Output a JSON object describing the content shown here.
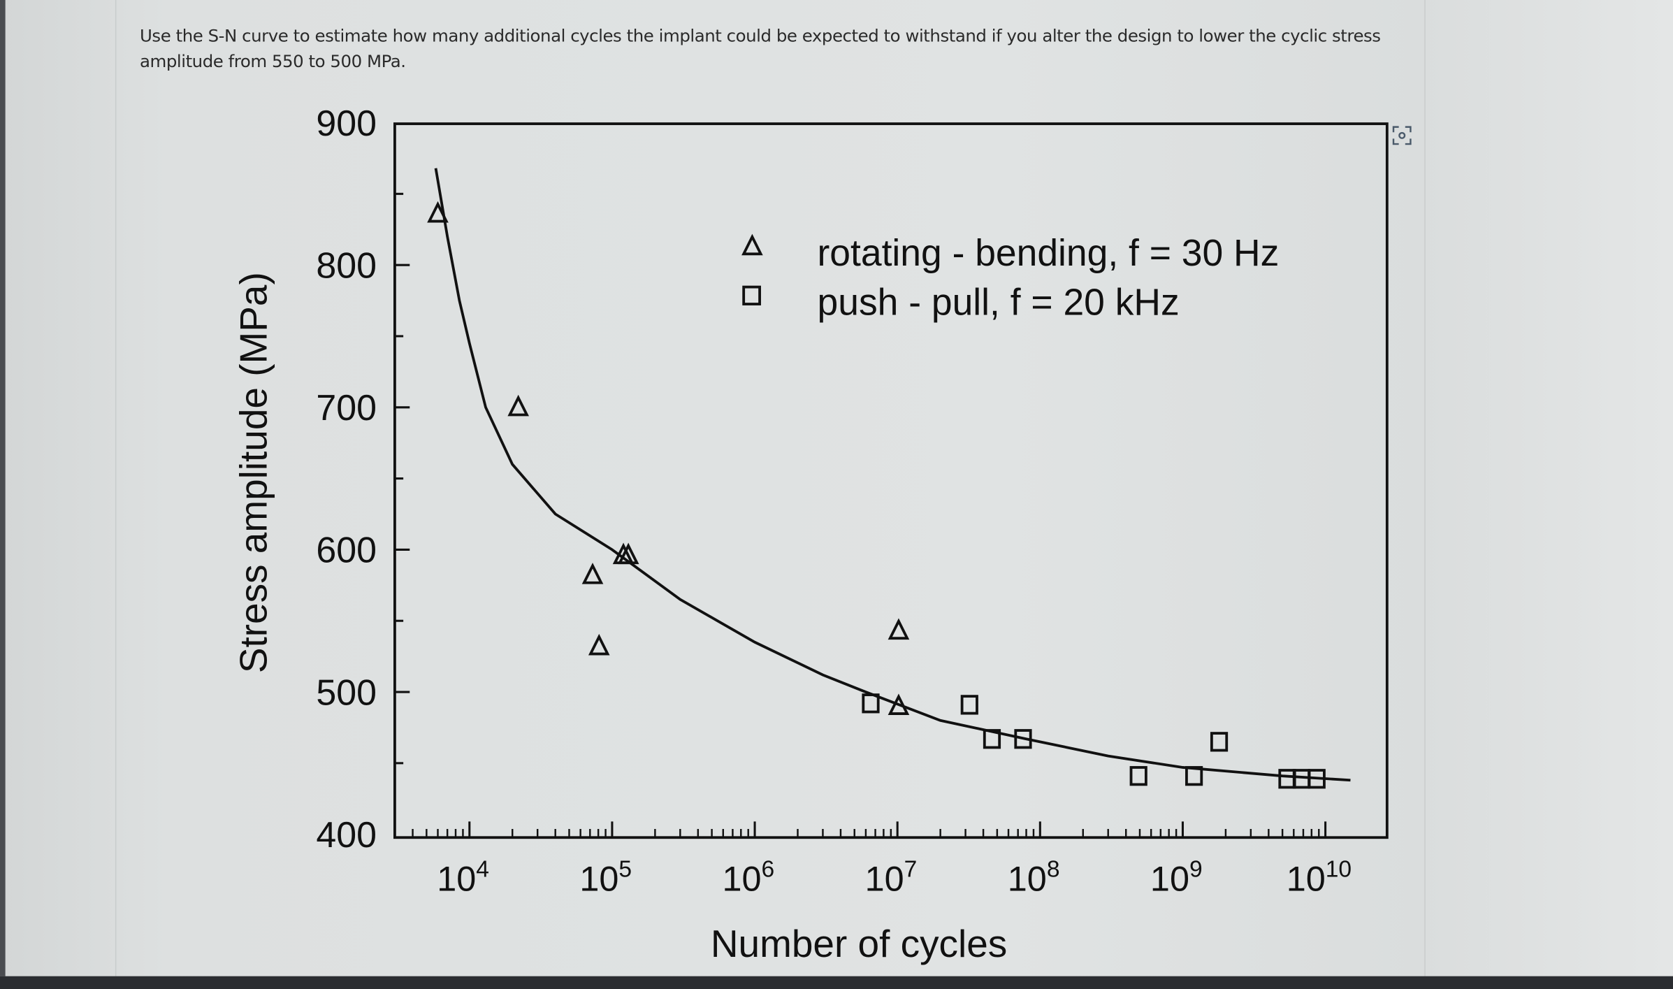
{
  "question": {
    "text": "Use the S-N curve to estimate how many additional cycles the implant could be expected to withstand if you alter the design to lower the cyclic stress amplitude from 550 to 500 MPa."
  },
  "expand_icon": "expand-image-icon",
  "chart_data": {
    "type": "scatter",
    "xlabel": "Number of cycles",
    "ylabel": "Stress amplitude (MPa)",
    "x_scale": "log",
    "xlim": [
      3000,
      27000000000
    ],
    "ylim": [
      400,
      900
    ],
    "x_ticks": [
      {
        "base": "10",
        "exp": "4",
        "value": 10000
      },
      {
        "base": "10",
        "exp": "5",
        "value": 100000
      },
      {
        "base": "10",
        "exp": "6",
        "value": 1000000
      },
      {
        "base": "10",
        "exp": "7",
        "value": 10000000
      },
      {
        "base": "10",
        "exp": "8",
        "value": 100000000
      },
      {
        "base": "10",
        "exp": "9",
        "value": 1000000000
      },
      {
        "base": "10",
        "exp": "10",
        "value": 10000000000
      }
    ],
    "y_ticks": [
      "900",
      "800",
      "700",
      "600",
      "500",
      "400"
    ],
    "grid": false,
    "legend_placement": "top-right",
    "series": [
      {
        "name": "rotating - bending, f = 30 Hz",
        "marker": "triangle",
        "points": [
          [
            6000,
            836
          ],
          [
            22000,
            700
          ],
          [
            73000,
            582
          ],
          [
            81000,
            532
          ],
          [
            120000,
            596
          ],
          [
            130000,
            596
          ],
          [
            10200000,
            543
          ],
          [
            10200000,
            490
          ]
        ]
      },
      {
        "name": "push - pull, f = 20 kHz",
        "marker": "square",
        "points": [
          [
            6500000,
            492
          ],
          [
            32000000,
            491
          ],
          [
            46000000,
            467
          ],
          [
            76000000,
            467
          ],
          [
            490000000,
            441
          ],
          [
            1200000000,
            441
          ],
          [
            1800000000,
            465
          ],
          [
            5400000000,
            439
          ],
          [
            6800000000,
            439
          ],
          [
            8700000000,
            439
          ]
        ]
      }
    ],
    "fit_curve": [
      [
        5800,
        868
      ],
      [
        7000,
        820
      ],
      [
        8500,
        775
      ],
      [
        10000,
        745
      ],
      [
        13000,
        700
      ],
      [
        20000,
        660
      ],
      [
        40000,
        625
      ],
      [
        100000,
        600
      ],
      [
        300000,
        565
      ],
      [
        1000000,
        535
      ],
      [
        3000000,
        512
      ],
      [
        6000000,
        500
      ],
      [
        20000000,
        480
      ],
      [
        80000000,
        467
      ],
      [
        300000000,
        455
      ],
      [
        1000000000,
        447
      ],
      [
        5000000000,
        441
      ],
      [
        15000000000,
        438
      ]
    ]
  }
}
